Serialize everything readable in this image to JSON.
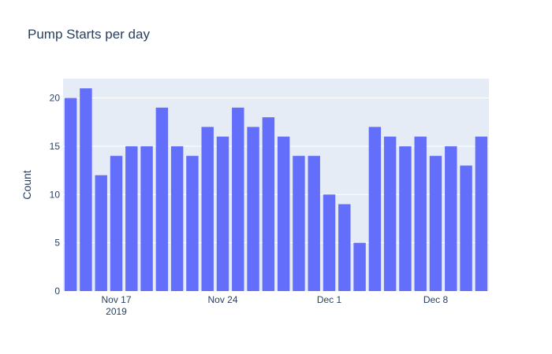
{
  "chart_data": {
    "type": "bar",
    "title": "Pump Starts per day",
    "xlabel": "",
    "ylabel": "Count",
    "x": [
      "2019-11-14",
      "2019-11-15",
      "2019-11-16",
      "2019-11-17",
      "2019-11-18",
      "2019-11-19",
      "2019-11-20",
      "2019-11-21",
      "2019-11-22",
      "2019-11-23",
      "2019-11-24",
      "2019-11-25",
      "2019-11-26",
      "2019-11-27",
      "2019-11-28",
      "2019-11-29",
      "2019-11-30",
      "2019-12-01",
      "2019-12-02",
      "2019-12-03",
      "2019-12-04",
      "2019-12-05",
      "2019-12-06",
      "2019-12-07",
      "2019-12-08",
      "2019-12-09",
      "2019-12-10",
      "2019-12-11"
    ],
    "values": [
      20,
      21,
      12,
      14,
      15,
      15,
      19,
      15,
      14,
      17,
      16,
      19,
      17,
      18,
      16,
      14,
      14,
      10,
      9,
      5,
      17,
      16,
      15,
      16,
      14,
      15,
      13,
      16
    ],
    "ylim": [
      0,
      22
    ],
    "y_ticks": [
      "0",
      "5",
      "10",
      "15",
      "20"
    ],
    "x_ticks": [
      {
        "date": "2019-11-17",
        "label": "Nov 17",
        "sublabel": "2019"
      },
      {
        "date": "2019-11-24",
        "label": "Nov 24",
        "sublabel": ""
      },
      {
        "date": "2019-12-01",
        "label": "Dec 1",
        "sublabel": ""
      },
      {
        "date": "2019-12-08",
        "label": "Dec 8",
        "sublabel": ""
      }
    ],
    "bar_color": "#636efa",
    "plot_bg": "#e5ecf6",
    "grid": true
  }
}
